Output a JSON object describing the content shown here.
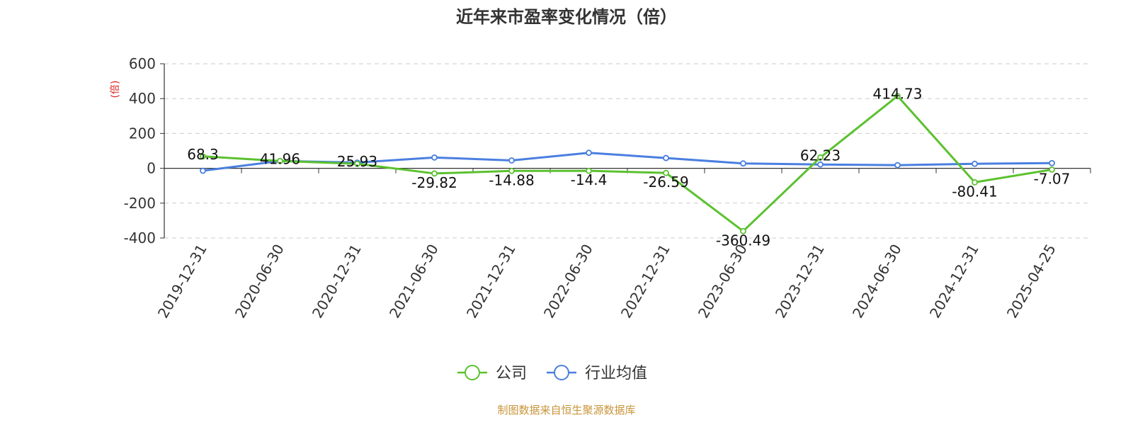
{
  "chart_data": {
    "type": "line",
    "title": "近年来市盈率变化情况（倍）",
    "ylabel": "(倍)",
    "xlabel": "",
    "ylim": [
      -400,
      600
    ],
    "yticks": [
      600,
      400,
      200,
      0,
      -200,
      -400
    ],
    "grid": true,
    "legend_position": "bottom",
    "categories": [
      "2019-12-31",
      "2020-06-30",
      "2020-12-31",
      "2021-06-30",
      "2021-12-31",
      "2022-06-30",
      "2022-12-31",
      "2023-06-30",
      "2023-12-31",
      "2024-06-30",
      "2024-12-31",
      "2025-04-25"
    ],
    "series": [
      {
        "name": "公司",
        "color": "#5bc12f",
        "values": [
          68.3,
          41.96,
          25.93,
          -29.82,
          -14.88,
          -14.4,
          -26.59,
          -360.49,
          62.23,
          414.73,
          -80.41,
          -7.07
        ],
        "labels": [
          "68.3",
          "41.96",
          "25.93",
          "-29.82",
          "-14.88",
          "-14.4",
          "-26.59",
          "-360.49",
          "62.23",
          "414.73",
          "-80.41",
          "-7.07"
        ]
      },
      {
        "name": "行业均值",
        "color": "#4a7fe0",
        "values": [
          -14,
          42,
          33,
          62,
          45,
          89,
          59,
          28,
          22,
          18,
          26,
          30
        ]
      }
    ],
    "source": "制图数据来自恒生聚源数据库",
    "colors": {
      "axis": "#333333",
      "grid": "#cccccc",
      "unit": "#e02020",
      "source": "#c8953a"
    }
  }
}
